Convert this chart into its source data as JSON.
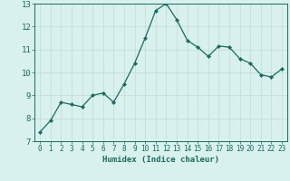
{
  "x": [
    0,
    1,
    2,
    3,
    4,
    5,
    6,
    7,
    8,
    9,
    10,
    11,
    12,
    13,
    14,
    15,
    16,
    17,
    18,
    19,
    20,
    21,
    22,
    23
  ],
  "y": [
    7.4,
    7.9,
    8.7,
    8.6,
    8.5,
    9.0,
    9.1,
    8.7,
    9.5,
    10.4,
    11.5,
    12.7,
    13.0,
    12.3,
    11.4,
    11.1,
    10.7,
    11.15,
    11.1,
    10.6,
    10.4,
    9.9,
    9.8,
    10.15
  ],
  "line_color": "#1a6b5a",
  "marker": "D",
  "marker_size": 2.2,
  "bg_color": "#d8f0ee",
  "grid_color": "#c0dbd8",
  "xlabel": "Humidex (Indice chaleur)",
  "ylim": [
    7,
    13
  ],
  "xlim": [
    -0.5,
    23.5
  ],
  "yticks": [
    7,
    8,
    9,
    10,
    11,
    12,
    13
  ],
  "xticks": [
    0,
    1,
    2,
    3,
    4,
    5,
    6,
    7,
    8,
    9,
    10,
    11,
    12,
    13,
    14,
    15,
    16,
    17,
    18,
    19,
    20,
    21,
    22,
    23
  ],
  "tick_fontsize": 5.5,
  "ytick_fontsize": 6.5,
  "xlabel_fontsize": 6.5
}
